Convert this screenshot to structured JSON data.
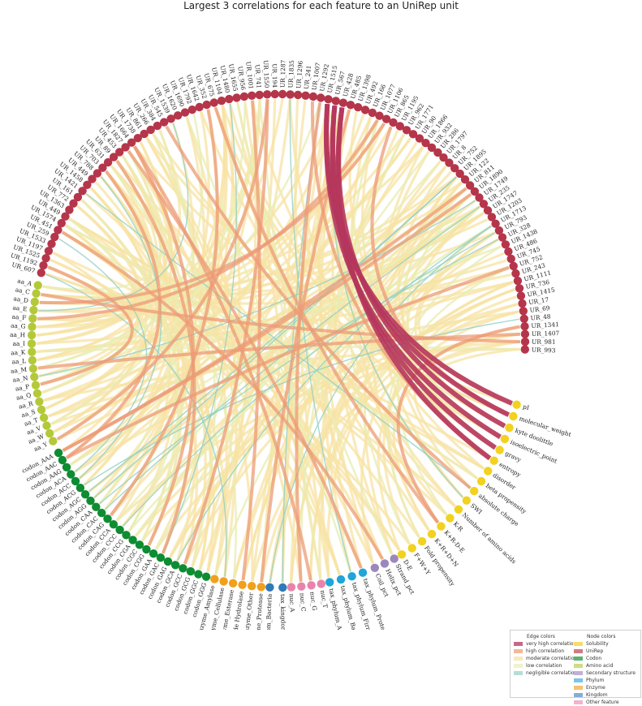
{
  "title": "Largest 3 correlations for each feature to an UniRep unit",
  "groups": {
    "unirep": {
      "color": "#b5364a",
      "labels": [
        "UR_607",
        "UR_1192",
        "UR_1525",
        "UR_1197",
        "UR_1533",
        "UR_259",
        "UR_451",
        "UR_1574",
        "UR_449",
        "UR_1363",
        "UR_772",
        "UR_161",
        "UR_1421",
        "UR_1458",
        "UR_449",
        "UR_788",
        "UR_703",
        "UR_631",
        "UR_89",
        "UR_453",
        "UR_1827",
        "UR_1664",
        "UR_1738",
        "UR_861",
        "UR_266",
        "UR_384",
        "UR_545",
        "UR_1539",
        "UR_1620",
        "UR_1690",
        "UR_1792",
        "UR_1642",
        "UR_352",
        "UR_675",
        "UR_1104",
        "UR_1480",
        "UR_1655",
        "UR_956",
        "UR_1001",
        "UR_741",
        "UR_1550",
        "UR_194",
        "UR_1287",
        "UR_1835",
        "UR_1296",
        "UR_241",
        "UR_1007",
        "UR_1292",
        "UR_1515",
        "UR_567",
        "UR_428",
        "UR_485",
        "UR_1398",
        "UR_492",
        "UR_166",
        "UR_1077",
        "UR_1106",
        "UR_865",
        "UR_1195",
        "UR_962",
        "UR_1771",
        "UR_90",
        "UR_1866",
        "UR_932",
        "UR_286",
        "UR_1797",
        "UR_8",
        "UR_752",
        "UR_1895",
        "UR_122",
        "UR_811",
        "UR_1890",
        "UR_1749",
        "UR_235",
        "UR_1747",
        "UR_1203",
        "UR_1713",
        "UR_793",
        "UR_328",
        "UR_1438",
        "UR_486",
        "UR_745",
        "UR_752",
        "UR_243",
        "UR_1111",
        "UR_736",
        "UR_1415",
        "UR_17",
        "UR_69",
        "UR_48",
        "UR_1341",
        "UR_1407",
        "UR_981",
        "UR_993"
      ]
    },
    "feature_solubility": {
      "color": "#f2d21f",
      "labels": [
        "pI",
        "molecular_weight",
        "kyte doolittle",
        "isoelectric_point",
        "gravy",
        "entropy",
        "disorder",
        "beta propensity",
        "absolute charge",
        "SWI",
        "Number of amino acids",
        "K-R",
        "K+R-D-E",
        "K+R+D+N",
        "Fold propensity",
        "F+W+Y",
        "D-E"
      ]
    },
    "secondary": {
      "color": "#9c87bd",
      "labels": [
        "Strand_pct",
        "Helix_pct",
        "Coil_pct"
      ]
    },
    "phylum": {
      "color": "#1fa5d9",
      "labels": [
        "tax_phylum_Proteobacteria",
        "tax_phylum_Firmicutes",
        "tax_phylum_Bacteroidetes",
        "tax_phylum_Actinobacteria"
      ]
    },
    "other": {
      "color": "#e884ab",
      "labels": [
        "nuc_T",
        "nuc_G",
        "nuc_C",
        "nuc_A"
      ]
    },
    "kingdom": {
      "color": "#3279b8",
      "labels": [
        "tax_kingdom_Metagenome",
        "tax_kingdom_Bacteria"
      ]
    },
    "enzyme": {
      "color": "#f0a01c",
      "labels": [
        "Enzyme_Protease",
        "Enzyme_Other",
        "Enzyme_Glycoside Hydrolase",
        "Enzyme_Esterase",
        "Enzyme_Cellulase",
        "Enzyme_Amylase"
      ]
    },
    "codon": {
      "color": "#0e8c32",
      "labels": [
        "codon_GGG",
        "codon_GGC",
        "codon_GCG",
        "codon_GCC",
        "codon_GCA",
        "codon_GAG",
        "codon_GAC",
        "codon_GAA",
        "codon_CGG",
        "codon_CGC",
        "codon_CGA",
        "codon_CCG",
        "codon_CCC",
        "codon_CCA",
        "codon_CAG",
        "codon_CAC",
        "codon_CAA",
        "codon_AGG",
        "codon_AGC",
        "codon_ACG",
        "codon_ACC",
        "codon_ACA",
        "codon_AAG",
        "codon_AAC",
        "codon_AAA"
      ]
    },
    "amino": {
      "color": "#b4c93a",
      "labels": [
        "aa_Y",
        "aa_W",
        "aa_V",
        "aa_T",
        "aa_S",
        "aa_R",
        "aa_Q",
        "aa_P",
        "aa_N",
        "aa_M",
        "aa_L",
        "aa_K",
        "aa_I",
        "aa_H",
        "aa_G",
        "aa_F",
        "aa_E",
        "aa_D",
        "aa_C",
        "aa_A"
      ]
    }
  },
  "edge_colors": {
    "very_high": "#b5365c",
    "high": "#ec9b76",
    "moderate": "#f7e3a4",
    "low": "#e9eeb4",
    "negligible": "#8fcfc5"
  },
  "legend": {
    "edge_title": "Edge colors",
    "edge_items": [
      {
        "label": "very high correlation",
        "color": "#c9668a"
      },
      {
        "label": "high correlation",
        "color": "#f1b99a"
      },
      {
        "label": "moderate correlation",
        "color": "#f8e9bd"
      },
      {
        "label": "low correlation",
        "color": "#eff3cb"
      },
      {
        "label": "negligible correlation",
        "color": "#b5ded7"
      }
    ],
    "node_title": "Node colors",
    "node_items": [
      {
        "label": "Solubility",
        "color": "#f5dd6a"
      },
      {
        "label": "UniRep",
        "color": "#d07a86"
      },
      {
        "label": "Codon",
        "color": "#5fb071"
      },
      {
        "label": "Amino acid",
        "color": "#cfdc84"
      },
      {
        "label": "Secondary structure",
        "color": "#c0b2d6"
      },
      {
        "label": "Phylum",
        "color": "#79c6e8"
      },
      {
        "label": "Enzyme",
        "color": "#f5c36e"
      },
      {
        "label": "Kingdom",
        "color": "#85aed6"
      },
      {
        "label": "Other feature",
        "color": "#f1b3cd"
      }
    ]
  }
}
